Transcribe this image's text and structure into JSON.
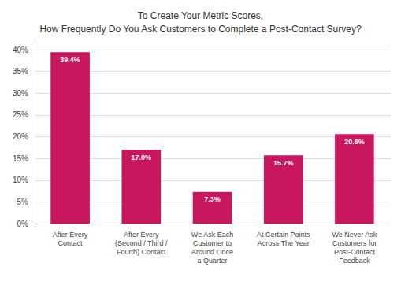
{
  "chart_data": {
    "type": "bar",
    "title": "To Create Your Metric Scores,\nHow Frequently Do You Ask Customers to Complete a Post-Contact Survey?",
    "categories": [
      "After Every\nContact",
      "After Every\n(Second / Third /\nFourth) Contact",
      "We Ask Each\nCustomer to\nAround Once\na Quarter",
      "At Certain Points\nAcross The Year",
      "We Never Ask\nCustomers for\nPost-Contact\nFeedback"
    ],
    "values": [
      39.4,
      17.0,
      7.3,
      15.7,
      20.6
    ],
    "value_labels": [
      "39.4%",
      "17.0%",
      "7.3%",
      "15.7%",
      "20.6%"
    ],
    "data_labels": true,
    "color": "#C8175F",
    "ylim": [
      0,
      42
    ],
    "yticks": [
      {
        "value": 0,
        "label": "0%"
      },
      {
        "value": 5,
        "label": "5%"
      },
      {
        "value": 10,
        "label": "10%"
      },
      {
        "value": 15,
        "label": "15%"
      },
      {
        "value": 20,
        "label": "20%"
      },
      {
        "value": 25,
        "label": "25%"
      },
      {
        "value": 30,
        "label": "30%"
      },
      {
        "value": 35,
        "label": "35%"
      },
      {
        "value": 40,
        "label": "40%"
      }
    ],
    "grid": true
  }
}
